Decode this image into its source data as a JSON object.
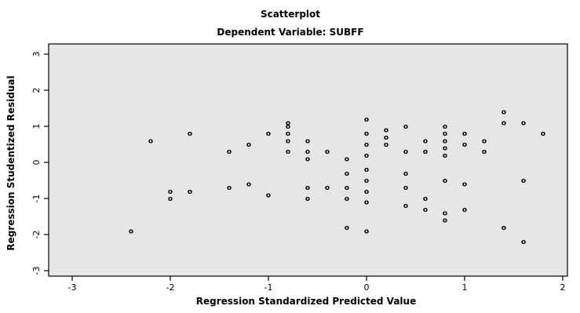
{
  "chart_data": {
    "type": "scatter",
    "title": "Scatterplot",
    "subtitle": "Dependent Variable: SUBFF",
    "xlabel": "Regression Standardized Predicted Value",
    "ylabel": "Regression Studentized Residual",
    "xlim": [
      -3,
      2
    ],
    "ylim": [
      -3,
      3
    ],
    "xticks": [
      -3,
      -2,
      -1,
      0,
      1,
      2
    ],
    "yticks": [
      -3,
      -2,
      -1,
      0,
      1,
      2,
      3
    ],
    "grid": false,
    "background_color": "#e6e6e6",
    "series": [
      {
        "marker": "o",
        "points": [
          [
            -2.4,
            -1.9
          ],
          [
            -2.2,
            0.6
          ],
          [
            -2.0,
            -0.8
          ],
          [
            -2.0,
            -1.0
          ],
          [
            -1.8,
            0.8
          ],
          [
            -1.8,
            -0.8
          ],
          [
            -1.4,
            0.3
          ],
          [
            -1.4,
            -0.7
          ],
          [
            -1.2,
            0.5
          ],
          [
            -1.2,
            -0.6
          ],
          [
            -1.0,
            -0.9
          ],
          [
            -1.0,
            0.8
          ],
          [
            -0.8,
            1.1
          ],
          [
            -0.8,
            1.0
          ],
          [
            -0.8,
            0.8
          ],
          [
            -0.8,
            0.6
          ],
          [
            -0.8,
            0.3
          ],
          [
            -0.6,
            0.6
          ],
          [
            -0.6,
            0.3
          ],
          [
            -0.6,
            0.1
          ],
          [
            -0.6,
            -0.7
          ],
          [
            -0.6,
            -1.0
          ],
          [
            -0.4,
            0.3
          ],
          [
            -0.4,
            -0.7
          ],
          [
            -0.2,
            0.1
          ],
          [
            -0.2,
            -0.3
          ],
          [
            -0.2,
            -0.7
          ],
          [
            -0.2,
            -1.0
          ],
          [
            -0.2,
            -1.8
          ],
          [
            0.0,
            1.2
          ],
          [
            0.0,
            0.8
          ],
          [
            0.0,
            0.5
          ],
          [
            0.0,
            0.2
          ],
          [
            0.0,
            -0.2
          ],
          [
            0.0,
            -0.5
          ],
          [
            0.0,
            -0.8
          ],
          [
            0.0,
            -1.1
          ],
          [
            0.0,
            -1.9
          ],
          [
            0.2,
            0.9
          ],
          [
            0.2,
            0.7
          ],
          [
            0.2,
            0.5
          ],
          [
            0.4,
            1.0
          ],
          [
            0.4,
            0.3
          ],
          [
            0.4,
            -0.3
          ],
          [
            0.4,
            -0.7
          ],
          [
            0.4,
            -1.2
          ],
          [
            0.6,
            0.6
          ],
          [
            0.6,
            0.3
          ],
          [
            0.6,
            -1.0
          ],
          [
            0.6,
            -1.3
          ],
          [
            0.8,
            1.0
          ],
          [
            0.8,
            0.8
          ],
          [
            0.8,
            0.6
          ],
          [
            0.8,
            0.4
          ],
          [
            0.8,
            0.2
          ],
          [
            0.8,
            -0.5
          ],
          [
            0.8,
            -1.4
          ],
          [
            0.8,
            -1.6
          ],
          [
            1.0,
            0.8
          ],
          [
            1.0,
            0.5
          ],
          [
            1.0,
            -0.6
          ],
          [
            1.0,
            -1.3
          ],
          [
            1.2,
            0.6
          ],
          [
            1.2,
            0.3
          ],
          [
            1.4,
            1.4
          ],
          [
            1.4,
            1.1
          ],
          [
            1.4,
            -1.8
          ],
          [
            1.6,
            1.1
          ],
          [
            1.6,
            -0.5
          ],
          [
            1.6,
            -2.2
          ],
          [
            1.8,
            0.8
          ]
        ]
      }
    ]
  }
}
